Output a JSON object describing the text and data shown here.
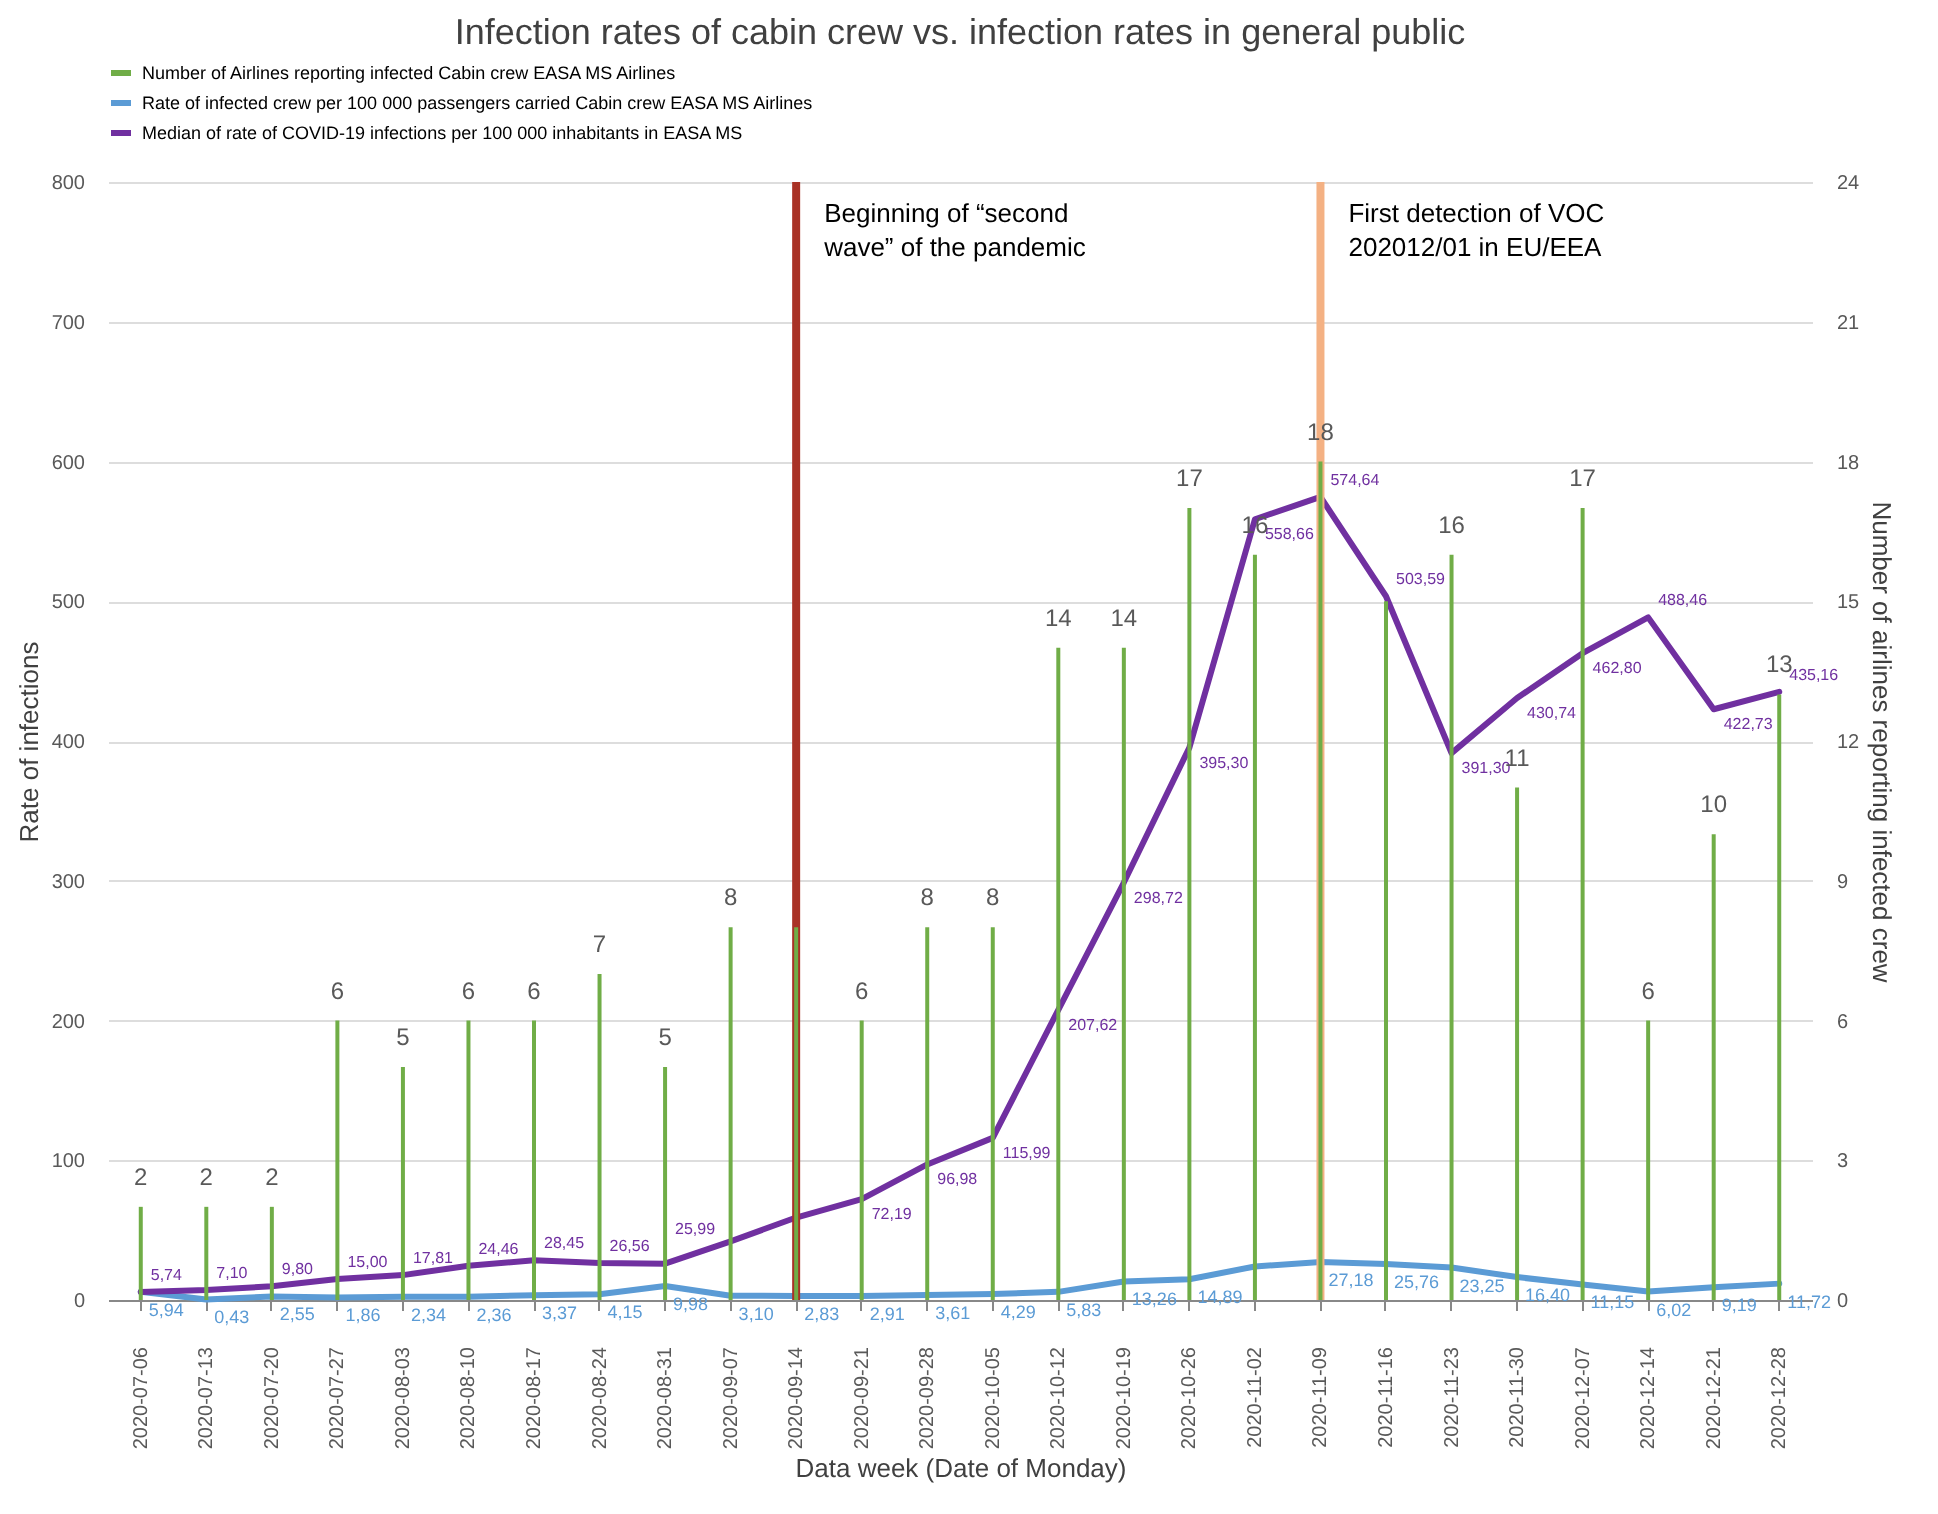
{
  "chart_data": {
    "type": "line",
    "title": "Infection rates of cabin crew vs. infection rates in general public",
    "xlabel": "Data week (Date of Monday)",
    "ylabel": "Rate of infections",
    "y2label": "Number of airlines reporting infected crew",
    "categories": [
      "2020-07-06",
      "2020-07-13",
      "2020-07-20",
      "2020-07-27",
      "2020-08-03",
      "2020-08-10",
      "2020-08-17",
      "2020-08-24",
      "2020-08-31",
      "2020-09-07",
      "2020-09-14",
      "2020-09-21",
      "2020-09-28",
      "2020-10-05",
      "2020-10-12",
      "2020-10-19",
      "2020-10-26",
      "2020-11-02",
      "2020-11-09",
      "2020-11-16",
      "2020-11-23",
      "2020-11-30",
      "2020-12-07",
      "2020-12-14",
      "2020-12-21",
      "2020-12-28"
    ],
    "series": [
      {
        "name": "Number of Airlines reporting infected Cabin crew EASA MS Airlines",
        "type": "bar",
        "axis": "y2",
        "color": "#70ad47",
        "values": [
          2,
          2,
          2,
          6,
          5,
          6,
          6,
          7,
          5,
          8,
          8,
          6,
          8,
          8,
          14,
          14,
          17,
          16,
          18,
          15,
          16,
          11,
          17,
          6,
          10,
          13
        ],
        "value_labels": [
          "2",
          "2",
          "2",
          "6",
          "5",
          "6",
          "6",
          "7",
          "5",
          "8",
          null,
          "6",
          "8",
          "8",
          "14",
          "14",
          "17",
          "16",
          "18",
          null,
          "16",
          "11",
          "17",
          "6",
          "10",
          "13"
        ]
      },
      {
        "name": "Rate of infected crew per 100 000 passengers carried Cabin crew EASA MS Airlines",
        "color": "#5b9bd5",
        "values": [
          5.94,
          0.43,
          2.55,
          1.86,
          2.34,
          2.36,
          3.37,
          4.15,
          9.98,
          3.1,
          2.83,
          2.91,
          3.61,
          4.29,
          5.83,
          13.26,
          14.89,
          24,
          27.18,
          25.76,
          23.25,
          16.4,
          11.15,
          6.02,
          9.19,
          11.72
        ],
        "value_labels": [
          "5,94",
          "0,43",
          "2,55",
          "1,86",
          "2,34",
          "2,36",
          "3,37",
          "4,15",
          "9,98",
          "3,10",
          "2,83",
          "2,91",
          "3,61",
          "4,29",
          "5,83",
          "13,26",
          "14,89",
          null,
          "27,18",
          "25,76",
          "23,25",
          "16,40",
          "11,15",
          "6,02",
          "9,19",
          "11,72"
        ]
      },
      {
        "name": "Median of rate of COVID-19 infections per 100 000 inhabitants in EASA MS",
        "color": "#7030a0",
        "values": [
          5.74,
          7.1,
          9.8,
          15,
          17.81,
          24.46,
          28.45,
          26.56,
          25.99,
          42,
          59,
          72.19,
          96.98,
          115.99,
          207.62,
          298.72,
          395.3,
          558.66,
          574.64,
          503.59,
          391.3,
          430.74,
          462.8,
          488.46,
          422.73,
          435.16
        ],
        "value_labels": [
          "5,74",
          "7,10",
          "9,80",
          "15,00",
          "17,81",
          "24,46",
          "28,45",
          "26,56",
          "25,99",
          null,
          null,
          "72,19",
          "96,98",
          "115,99",
          "207,62",
          "298,72",
          "395,30",
          "558,66",
          "574,64",
          "503,59",
          "391,30",
          "430,74",
          "462,80",
          "488,46",
          "422,73",
          "435,16"
        ]
      }
    ],
    "ylim": [
      0,
      800
    ],
    "yticks": [
      0,
      100,
      200,
      300,
      400,
      500,
      600,
      700,
      800
    ],
    "y2lim": [
      0,
      24
    ],
    "y2ticks": [
      0,
      3,
      6,
      9,
      12,
      15,
      18,
      21,
      24
    ],
    "grid": "y",
    "legend": "top",
    "ref_lines": [
      {
        "axis": "x",
        "value": "2020-09-14",
        "label": "Beginning of “second wave” of the pandemic",
        "color": "#a93226"
      },
      {
        "axis": "x",
        "value": "2020-11-09",
        "label": "First detection of VOC 202012/01 in EU/EEA",
        "color": "#f4b183"
      }
    ]
  }
}
